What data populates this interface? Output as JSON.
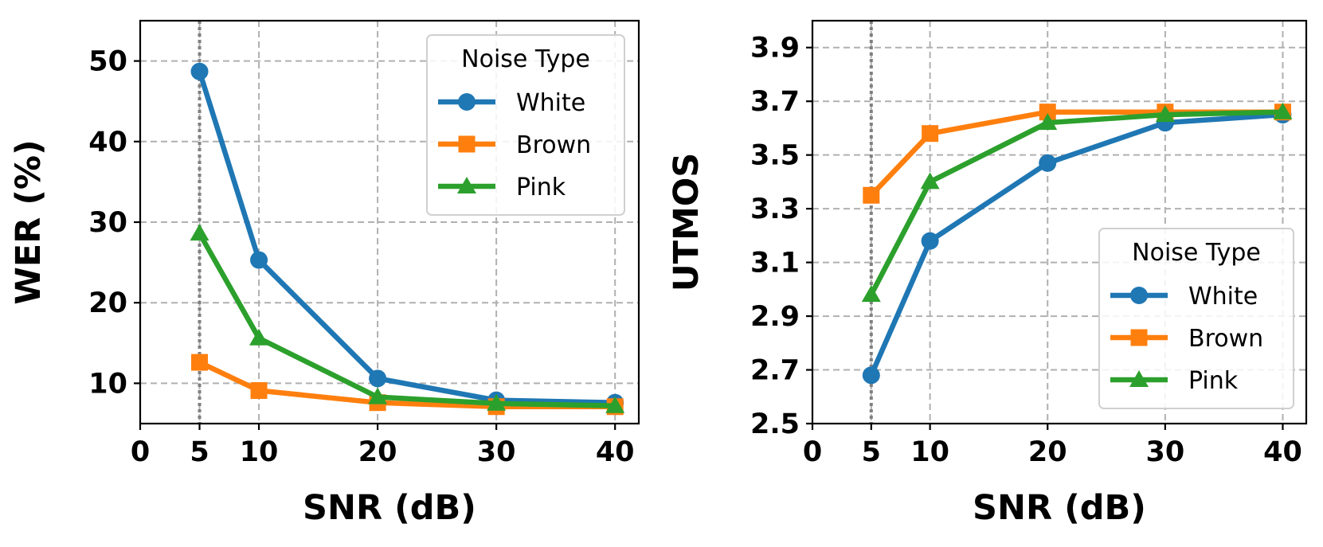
{
  "chart_data": [
    {
      "type": "line",
      "title": "",
      "xlabel": "SNR (dB)",
      "ylabel": "WER (%)",
      "xlim": [
        0,
        42
      ],
      "ylim": [
        5,
        55
      ],
      "xticks": [
        0,
        5,
        10,
        20,
        30,
        40
      ],
      "yticks": [
        10,
        20,
        30,
        40,
        50
      ],
      "xtick_labels": [
        "0",
        "5",
        "10",
        "20",
        "30",
        "40"
      ],
      "ytick_labels": [
        "10",
        "20",
        "30",
        "40",
        "50"
      ],
      "grid": true,
      "reference_line_x": 5,
      "legend_title": "Noise Type",
      "legend_position": "top-right",
      "x": [
        5,
        10,
        20,
        30,
        40
      ],
      "series": [
        {
          "name": "White",
          "color": "#1f77b4",
          "marker": "circle",
          "values": [
            48.7,
            25.3,
            10.6,
            7.9,
            7.6
          ]
        },
        {
          "name": "Brown",
          "color": "#ff7f0e",
          "marker": "square",
          "values": [
            12.6,
            9.1,
            7.6,
            7.1,
            7.1
          ]
        },
        {
          "name": "Pink",
          "color": "#2ca02c",
          "marker": "triangle",
          "values": [
            28.6,
            15.6,
            8.3,
            7.5,
            7.2
          ]
        }
      ]
    },
    {
      "type": "line",
      "title": "",
      "xlabel": "SNR (dB)",
      "ylabel": "UTMOS",
      "xlim": [
        0,
        42
      ],
      "ylim": [
        2.5,
        4.0
      ],
      "xticks": [
        0,
        5,
        10,
        20,
        30,
        40
      ],
      "yticks": [
        2.5,
        2.7,
        2.9,
        3.1,
        3.3,
        3.5,
        3.7,
        3.9
      ],
      "xtick_labels": [
        "0",
        "5",
        "10",
        "20",
        "30",
        "40"
      ],
      "ytick_labels": [
        "2.5",
        "2.7",
        "2.9",
        "3.1",
        "3.3",
        "3.5",
        "3.7",
        "3.9"
      ],
      "grid": true,
      "reference_line_x": 5,
      "legend_title": "Noise Type",
      "legend_position": "bottom-right",
      "x": [
        5,
        10,
        20,
        30,
        40
      ],
      "series": [
        {
          "name": "White",
          "color": "#1f77b4",
          "marker": "circle",
          "values": [
            2.68,
            3.18,
            3.47,
            3.62,
            3.65
          ]
        },
        {
          "name": "Brown",
          "color": "#ff7f0e",
          "marker": "square",
          "values": [
            3.35,
            3.58,
            3.66,
            3.66,
            3.66
          ]
        },
        {
          "name": "Pink",
          "color": "#2ca02c",
          "marker": "triangle",
          "values": [
            2.98,
            3.4,
            3.62,
            3.65,
            3.66
          ]
        }
      ]
    }
  ]
}
